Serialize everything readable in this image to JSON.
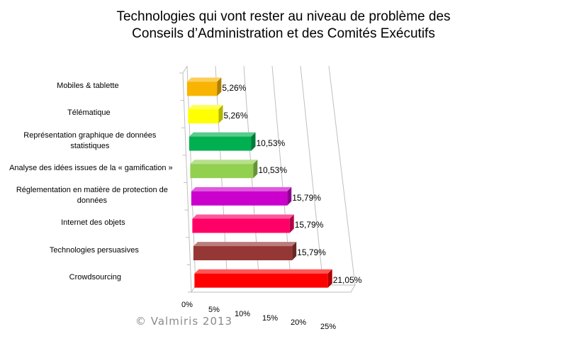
{
  "chart_data": {
    "type": "bar",
    "orientation": "horizontal",
    "title": "Technologies qui vont rester au niveau de problème des Conseils d’Administration et des Comités Exécutifs",
    "title_lines": [
      "Technologies qui vont rester au niveau de problème des",
      "Conseils d’Administration et des Comités Exécutifs"
    ],
    "categories": [
      "Mobiles & tablette",
      "Télématique",
      "Représentation graphique de données statistiques",
      "Analyse des idées issues de la « gamification »",
      "Réglementation en matière de protection de données",
      "Internet des objets",
      "Technologies persuasives",
      "Crowdsourcing"
    ],
    "category_lines": [
      [
        "Mobiles & tablette"
      ],
      [
        "Télématique"
      ],
      [
        "Représentation graphique de données",
        "statistiques"
      ],
      [
        "Analyse des idées issues de la « gamification »"
      ],
      [
        "Réglementation en matière de protection de",
        "données"
      ],
      [
        "Internet des objets"
      ],
      [
        "Technologies persuasives"
      ],
      [
        "Crowdsourcing"
      ]
    ],
    "values": [
      5.26,
      5.26,
      10.53,
      10.53,
      15.79,
      15.79,
      15.79,
      21.05
    ],
    "value_labels": [
      "5,26%",
      "5,26%",
      "10,53%",
      "10,53%",
      "15,79%",
      "15,79%",
      "15,79%",
      "21,05%"
    ],
    "colors": [
      "#f8b400",
      "#ffff00",
      "#00b050",
      "#92d050",
      "#cc00cc",
      "#ff0066",
      "#953735",
      "#ff0000"
    ],
    "xlim": [
      0,
      25
    ],
    "xticks": [
      "0%",
      "5%",
      "10%",
      "15%",
      "20%",
      "25%"
    ],
    "grid": true,
    "style": "3d",
    "legend": "none"
  },
  "credit": "© Valmiris 2013"
}
